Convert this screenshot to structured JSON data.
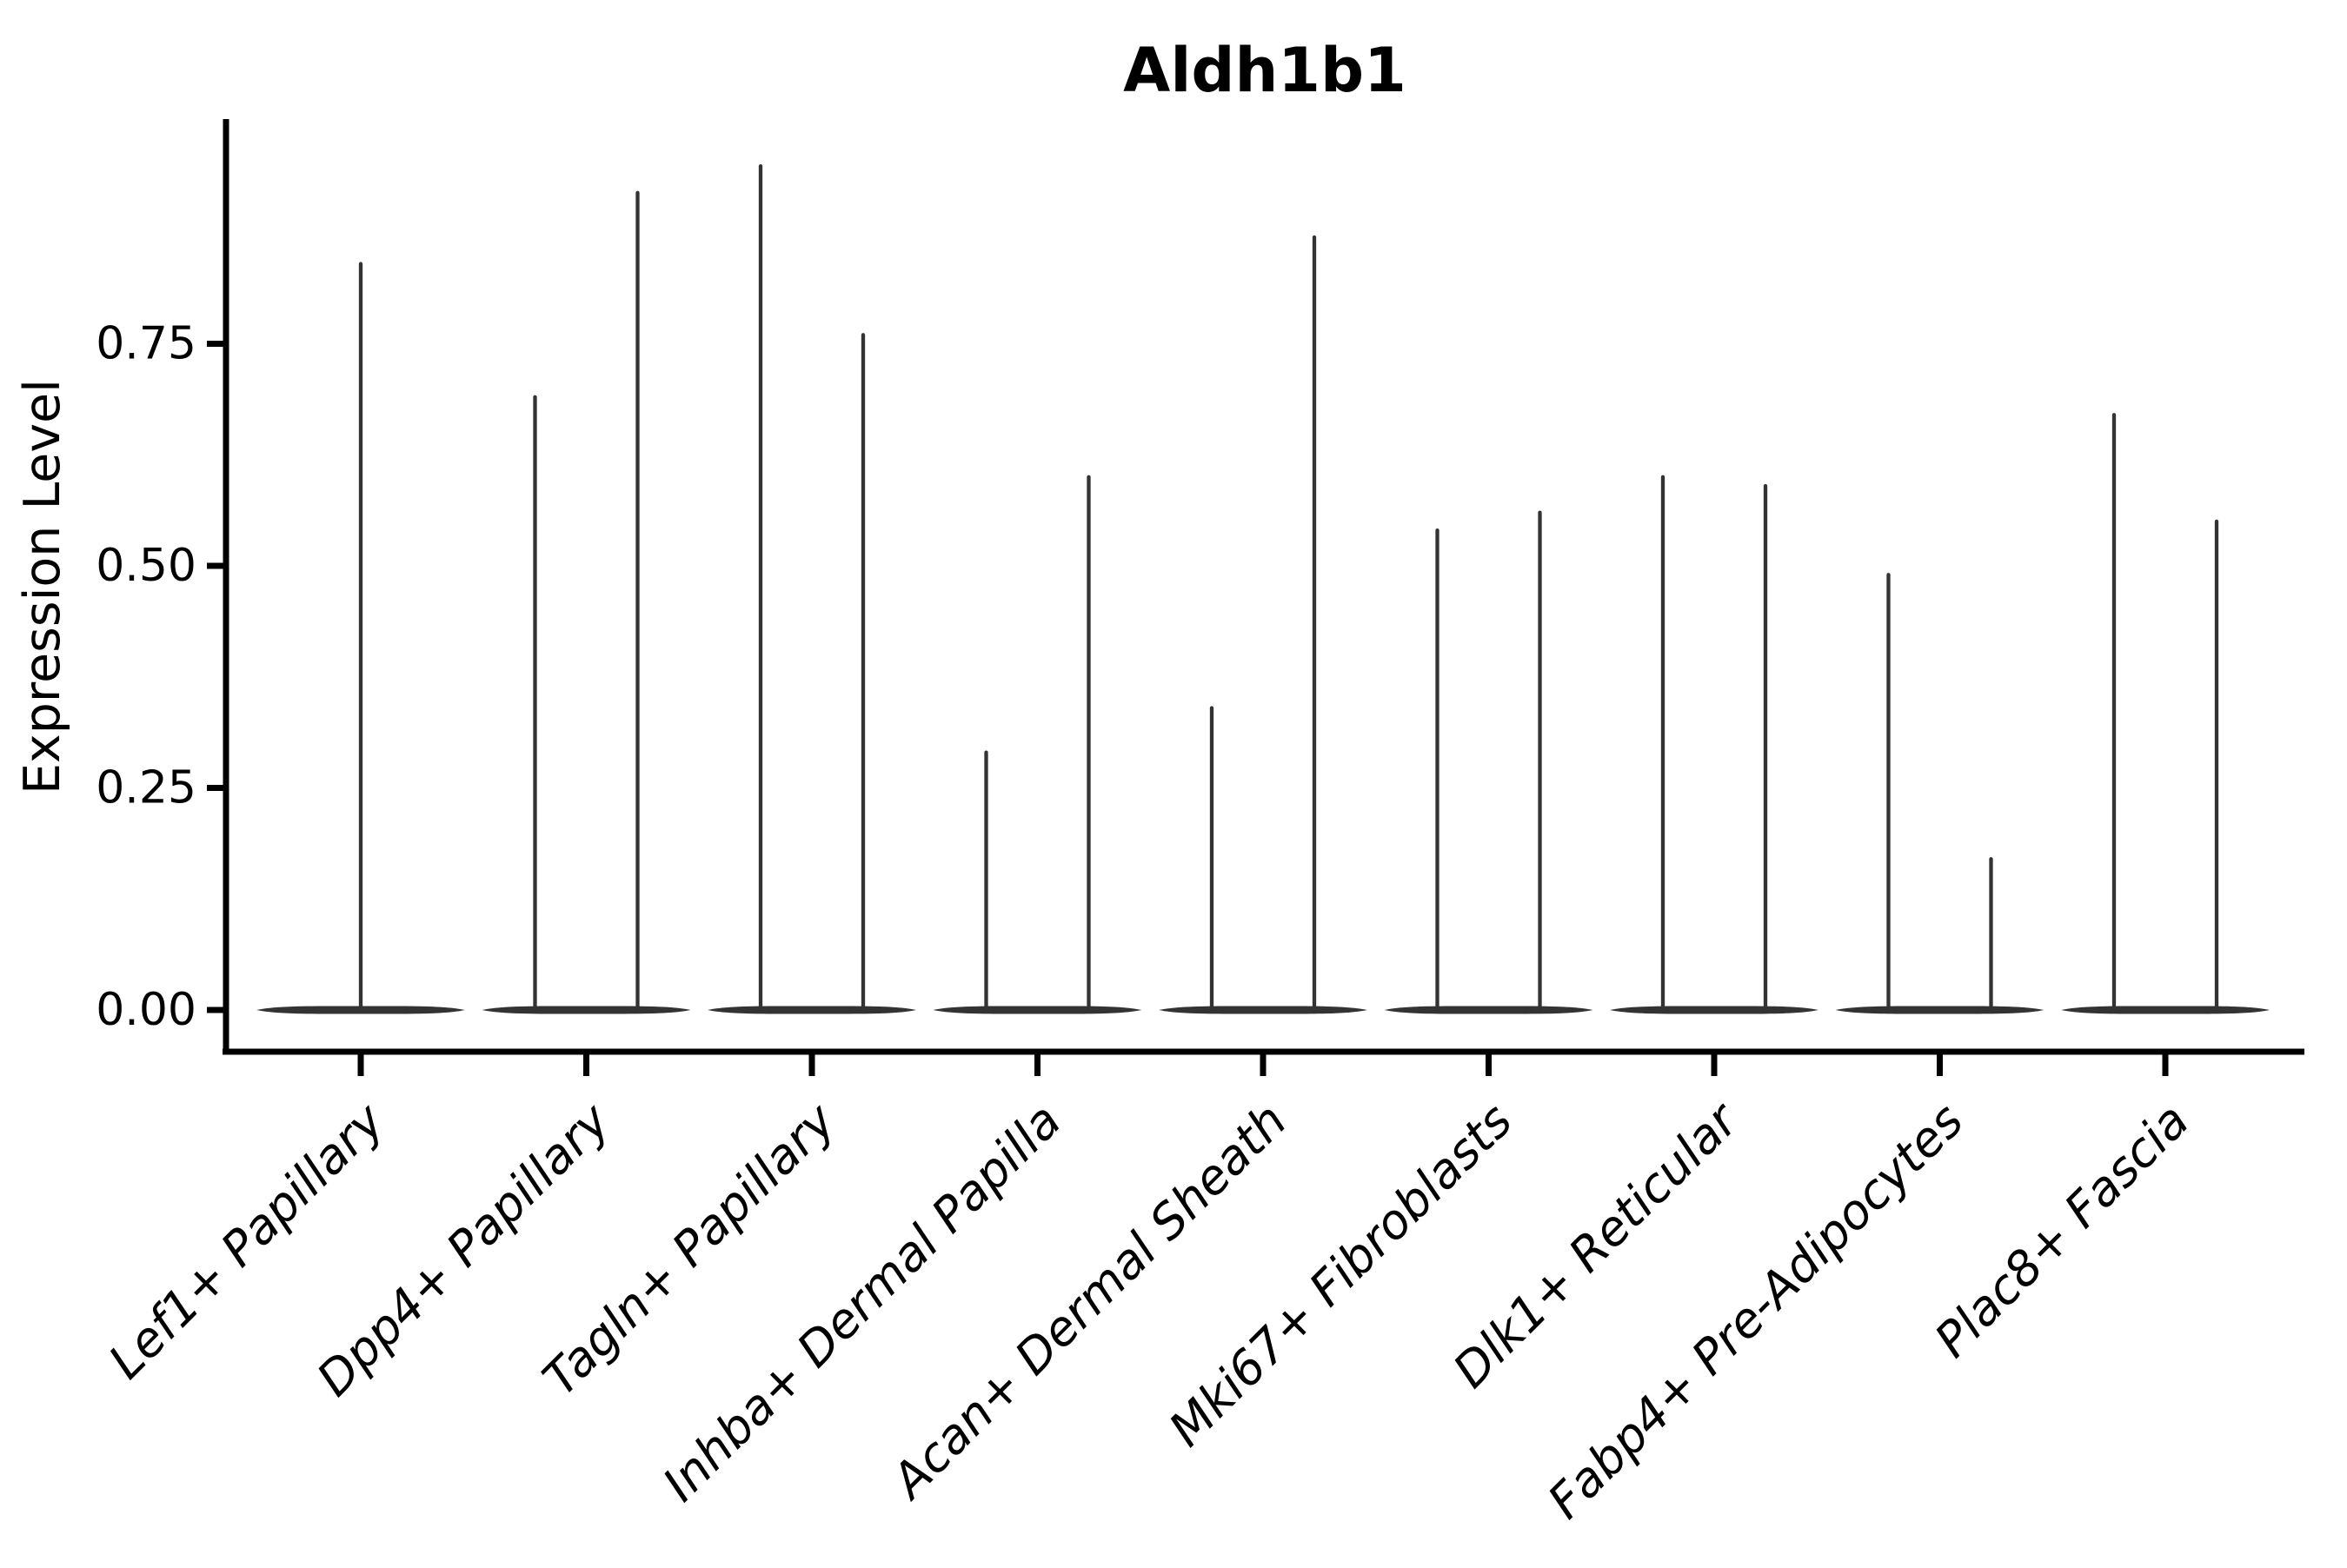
{
  "chart_data": {
    "type": "violin",
    "title": "Aldh1b1",
    "ylabel": "Expression Level",
    "xlabel": "",
    "legend": "none",
    "grid": false,
    "ylim": [
      -0.047,
      1.0
    ],
    "yticks": [
      {
        "value": 0.0,
        "label": "0.00"
      },
      {
        "value": 0.25,
        "label": "0.25"
      },
      {
        "value": 0.5,
        "label": "0.50"
      },
      {
        "value": 0.75,
        "label": "0.75"
      }
    ],
    "categories": [
      "Lef1+ Papillary",
      "Dpp4+ Papillary",
      "Tagln+ Papillary",
      "Inhba+ Dermal Papilla",
      "Acan+ Dermal Sheath",
      "Mki67+ Fibroblasts",
      "Dlk1+ Reticular",
      "Fabp4+ Pre-Adipocytes",
      "Plac8+ Fascia"
    ],
    "violins": [
      {
        "category": "Lef1+ Papillary",
        "spikes": [
          {
            "pos": "center",
            "max": 0.84
          }
        ]
      },
      {
        "category": "Dpp4+ Papillary",
        "spikes": [
          {
            "pos": "left",
            "max": 0.69
          },
          {
            "pos": "right",
            "max": 0.92
          }
        ]
      },
      {
        "category": "Tagln+ Papillary",
        "spikes": [
          {
            "pos": "left",
            "max": 0.95
          },
          {
            "pos": "right",
            "max": 0.76
          }
        ]
      },
      {
        "category": "Inhba+ Dermal Papilla",
        "spikes": [
          {
            "pos": "left",
            "max": 0.29
          },
          {
            "pos": "right",
            "max": 0.6
          }
        ]
      },
      {
        "category": "Acan+ Dermal Sheath",
        "spikes": [
          {
            "pos": "left",
            "max": 0.34
          },
          {
            "pos": "right",
            "max": 0.87
          }
        ]
      },
      {
        "category": "Mki67+ Fibroblasts",
        "spikes": [
          {
            "pos": "left",
            "max": 0.54
          },
          {
            "pos": "right",
            "max": 0.56
          }
        ]
      },
      {
        "category": "Dlk1+ Reticular",
        "spikes": [
          {
            "pos": "left",
            "max": 0.6
          },
          {
            "pos": "right",
            "max": 0.59
          }
        ]
      },
      {
        "category": "Fabp4+ Pre-Adipocytes",
        "spikes": [
          {
            "pos": "left",
            "max": 0.49
          },
          {
            "pos": "right",
            "max": 0.17
          }
        ]
      },
      {
        "category": "Plac8+ Fascia",
        "spikes": [
          {
            "pos": "left",
            "max": 0.67
          },
          {
            "pos": "right",
            "max": 0.55
          }
        ]
      }
    ],
    "style": {
      "violin_color": "#333333",
      "axis_color": "#000000",
      "background_color": "#ffffff"
    }
  }
}
